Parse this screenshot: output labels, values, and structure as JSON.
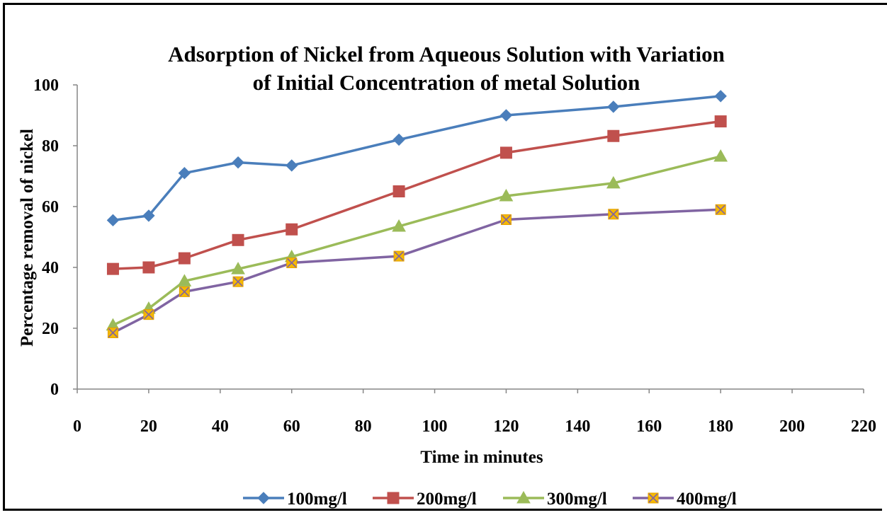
{
  "chart_data": {
    "type": "line",
    "title_lines": [
      "Adsorption of Nickel from Aqueous Solution with Variation",
      "of Initial Concentration of metal Solution"
    ],
    "xlabel": "Time in minutes",
    "ylabel": "Percentage removal of nickel",
    "xlim": [
      0,
      220
    ],
    "ylim": [
      0,
      100
    ],
    "x_ticks": [
      "0",
      "20",
      "40",
      "60",
      "80",
      "100",
      "120",
      "140",
      "160",
      "180",
      "200",
      "220"
    ],
    "y_ticks": [
      "0",
      "20",
      "40",
      "60",
      "80",
      "100"
    ],
    "grid": false,
    "legend_position": "bottom",
    "x": [
      10,
      20,
      30,
      45,
      60,
      90,
      120,
      150,
      180
    ],
    "series": [
      {
        "name": "100mg/l",
        "color": "#4a7ebb",
        "marker": "diamond",
        "values": [
          55.5,
          57,
          71,
          74.5,
          73.5,
          82,
          90,
          92.8,
          96.3
        ]
      },
      {
        "name": "200mg/l",
        "color": "#c0504d",
        "marker": "square",
        "values": [
          39.5,
          40,
          43,
          49,
          52.5,
          65,
          77.7,
          83.2,
          88
        ]
      },
      {
        "name": "300mg/l",
        "color": "#9bbb59",
        "marker": "triangle",
        "values": [
          21,
          26.5,
          35.5,
          39.5,
          43.5,
          53.5,
          63.5,
          67.7,
          76.5
        ]
      },
      {
        "name": "400mg/l",
        "color": "#8064a2",
        "marker": "xsquare",
        "values": [
          18.5,
          24.5,
          32,
          35.3,
          41.5,
          43.7,
          55.7,
          57.5,
          59
        ]
      }
    ]
  }
}
